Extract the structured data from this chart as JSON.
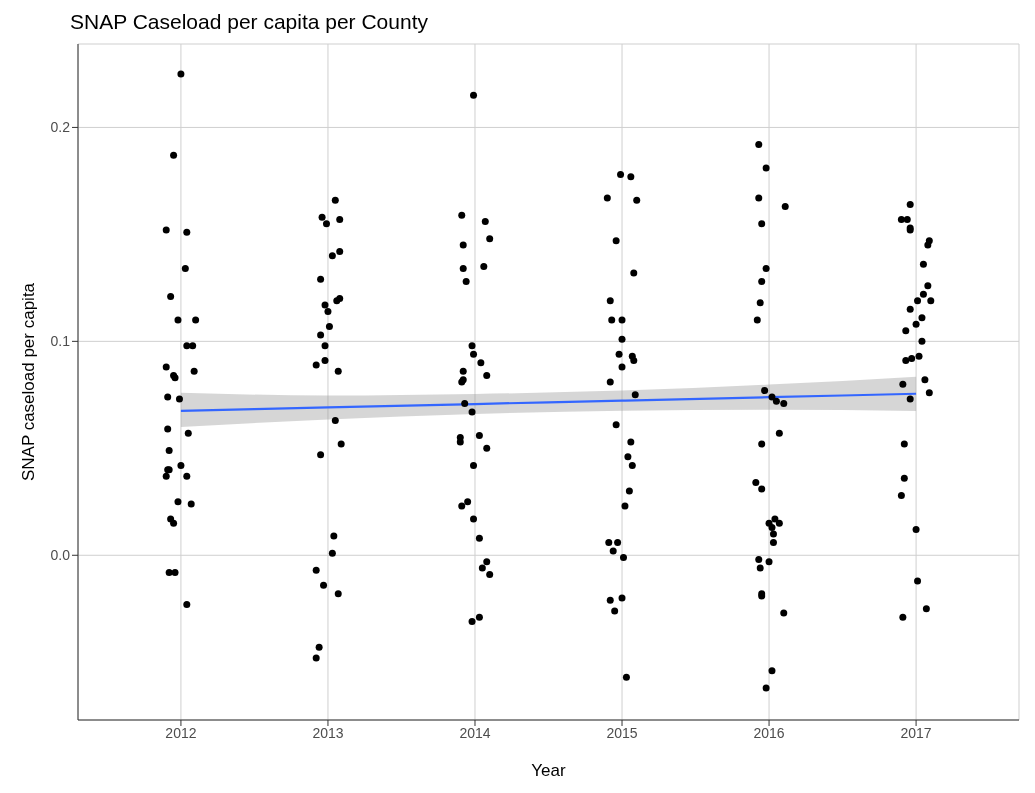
{
  "chart_data": {
    "type": "scatter",
    "title": "SNAP Caseload per capita per County",
    "xlabel": "Year",
    "ylabel": "SNAP caseload per capita",
    "xlim": [
      2011.3,
      2017.7
    ],
    "xticks": [
      2012,
      2013,
      2014,
      2015,
      2016,
      2017
    ],
    "ylim": [
      -0.077,
      0.239
    ],
    "yticks": [
      {
        "value": 0,
        "label": "0.0"
      },
      {
        "value": 0.1,
        "label": "0.1"
      },
      {
        "value": 0.2,
        "label": "0.2"
      }
    ],
    "grid": true,
    "legend": false,
    "series": [
      {
        "marker": "circle",
        "color": "#000000",
        "x": [
          2012.0,
          2011.95,
          2011.9,
          2012.04,
          2012.03,
          2011.93,
          2011.98,
          2012.1,
          2012.04,
          2012.08,
          2011.9,
          2011.95,
          2011.96,
          2012.09,
          2011.91,
          2011.99,
          2011.91,
          2012.05,
          2011.92,
          2012.0,
          2011.91,
          2011.92,
          2011.9,
          2012.04,
          2011.98,
          2012.07,
          2011.93,
          2011.95,
          2011.92,
          2011.96,
          2012.04,
          2013.05,
          2012.96,
          2012.99,
          2013.08,
          2013.03,
          2013.08,
          2012.95,
          2012.98,
          2013.0,
          2013.06,
          2013.08,
          2013.01,
          2012.95,
          2012.98,
          2012.92,
          2012.98,
          2013.07,
          2013.05,
          2013.09,
          2012.95,
          2013.04,
          2013.03,
          2012.92,
          2012.97,
          2013.07,
          2012.94,
          2012.92,
          2013.99,
          2013.91,
          2014.07,
          2014.1,
          2013.92,
          2013.92,
          2014.06,
          2013.94,
          2013.98,
          2013.99,
          2014.04,
          2013.92,
          2013.92,
          2013.91,
          2014.08,
          2013.93,
          2013.98,
          2013.9,
          2013.9,
          2014.03,
          2014.08,
          2013.99,
          2013.95,
          2013.91,
          2013.99,
          2014.03,
          2014.08,
          2014.05,
          2014.1,
          2014.03,
          2013.98,
          2014.99,
          2015.06,
          2014.9,
          2015.1,
          2014.96,
          2015.08,
          2014.92,
          2014.93,
          2015.0,
          2015.0,
          2014.98,
          2015.07,
          2015.08,
          2015.0,
          2014.92,
          2015.09,
          2014.96,
          2015.06,
          2015.04,
          2015.07,
          2015.05,
          2015.02,
          2014.91,
          2014.97,
          2014.94,
          2015.01,
          2014.92,
          2015.0,
          2014.95,
          2015.03,
          2015.93,
          2015.98,
          2015.93,
          2016.11,
          2015.95,
          2015.98,
          2015.95,
          2015.94,
          2015.92,
          2015.97,
          2016.02,
          2016.05,
          2016.1,
          2016.07,
          2015.95,
          2015.91,
          2015.95,
          2016.04,
          2016.07,
          2016.0,
          2016.02,
          2016.03,
          2016.03,
          2015.93,
          2016.0,
          2015.94,
          2015.95,
          2015.95,
          2016.1,
          2016.02,
          2015.98,
          2016.96,
          2016.9,
          2016.94,
          2016.96,
          2016.96,
          2017.09,
          2017.08,
          2017.05,
          2017.08,
          2017.05,
          2017.01,
          2017.1,
          2016.96,
          2017.04,
          2017.0,
          2016.93,
          2017.04,
          2017.02,
          2016.93,
          2016.97,
          2017.06,
          2016.91,
          2017.09,
          2016.96,
          2016.92,
          2016.92,
          2016.9,
          2017.0,
          2017.01,
          2017.07,
          2016.91
        ],
        "values": [
          0.225,
          0.187,
          0.152,
          0.151,
          0.134,
          0.121,
          0.11,
          0.11,
          0.098,
          0.098,
          0.088,
          0.084,
          0.083,
          0.086,
          0.074,
          0.073,
          0.059,
          0.057,
          0.049,
          0.042,
          0.04,
          0.04,
          0.037,
          0.037,
          0.025,
          0.024,
          0.017,
          0.015,
          -0.008,
          -0.008,
          -0.023,
          0.166,
          0.158,
          0.155,
          0.157,
          0.14,
          0.142,
          0.129,
          0.117,
          0.114,
          0.119,
          0.12,
          0.107,
          0.103,
          0.098,
          0.089,
          0.091,
          0.086,
          0.063,
          0.052,
          0.047,
          0.009,
          0.001,
          -0.007,
          -0.014,
          -0.018,
          -0.043,
          -0.048,
          0.215,
          0.159,
          0.156,
          0.148,
          0.145,
          0.134,
          0.135,
          0.128,
          0.098,
          0.094,
          0.09,
          0.086,
          0.082,
          0.081,
          0.084,
          0.071,
          0.067,
          0.055,
          0.053,
          0.056,
          0.05,
          0.042,
          0.025,
          0.023,
          0.017,
          0.008,
          -0.003,
          -0.006,
          -0.009,
          -0.029,
          -0.031,
          0.178,
          0.177,
          0.167,
          0.166,
          0.147,
          0.132,
          0.119,
          0.11,
          0.11,
          0.101,
          0.094,
          0.093,
          0.091,
          0.088,
          0.081,
          0.075,
          0.061,
          0.053,
          0.046,
          0.042,
          0.03,
          0.023,
          0.006,
          0.006,
          0.002,
          -0.001,
          -0.021,
          -0.02,
          -0.026,
          -0.057,
          0.192,
          0.181,
          0.167,
          0.163,
          0.155,
          0.134,
          0.128,
          0.118,
          0.11,
          0.077,
          0.074,
          0.072,
          0.071,
          0.057,
          0.052,
          0.034,
          0.031,
          0.017,
          0.015,
          0.015,
          0.013,
          0.01,
          0.006,
          -0.002,
          -0.003,
          -0.006,
          -0.018,
          -0.019,
          -0.027,
          -0.054,
          -0.062,
          0.164,
          0.157,
          0.157,
          0.152,
          0.153,
          0.147,
          0.145,
          0.136,
          0.126,
          0.122,
          0.119,
          0.119,
          0.115,
          0.111,
          0.108,
          0.105,
          0.1,
          0.093,
          0.091,
          0.092,
          0.082,
          0.08,
          0.076,
          0.073,
          0.052,
          0.036,
          0.028,
          0.012,
          -0.012,
          -0.025,
          -0.029
        ]
      },
      {
        "type": "line",
        "marker": "none",
        "color": "#3366ff",
        "x": [
          2012,
          2013,
          2014,
          2015,
          2016,
          2017
        ],
        "values": [
          0.0675,
          0.0691,
          0.0707,
          0.0723,
          0.0739,
          0.0755
        ],
        "lower": [
          0.06,
          0.0635,
          0.066,
          0.0676,
          0.068,
          0.0675
        ],
        "upper": [
          0.076,
          0.0747,
          0.0754,
          0.077,
          0.0798,
          0.0835
        ]
      }
    ]
  }
}
